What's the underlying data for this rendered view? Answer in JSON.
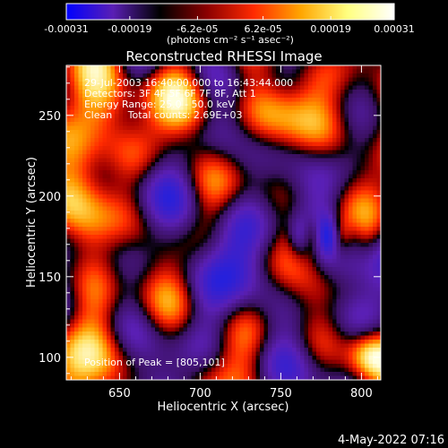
{
  "colorbar": {
    "tick_labels": [
      "-0.00031",
      "-0.00019",
      "-6.2e-05",
      "6.2e-05",
      "0.00019",
      "0.00031"
    ],
    "tick_values": [
      -0.00031,
      -0.00019,
      -6.2e-05,
      6.2e-05,
      0.00019,
      0.00031
    ],
    "range": [
      -0.00031,
      0.00031
    ],
    "unit_label": "(photons cm⁻² s⁻¹ asec⁻²)",
    "colormap": [
      "#0000ff",
      "#5a1fb4",
      "#000000",
      "#8b0000",
      "#ff2a00",
      "#ffa500",
      "#ffff80",
      "#ffffff"
    ]
  },
  "chart_data": {
    "type": "heatmap",
    "title": "Reconstructed RHESSI Image",
    "xlabel": "Heliocentric X (arcsec)",
    "ylabel": "Heliocentric Y (arcsec)",
    "xlim": [
      617,
      812
    ],
    "ylim": [
      86,
      281
    ],
    "x_ticks": [
      650,
      700,
      750,
      800
    ],
    "y_ticks": [
      100,
      150,
      200,
      250
    ],
    "annotations": [
      "29-Jul-2003 16:40:00.000 to 16:43:44.000",
      "Detectors: 3F 4F 5F 6F 7F 8F, Att 1",
      "Energy Range: 25.0 - 50.0 keV",
      "Clean     Total counts: 2.69E+03"
    ],
    "peak_label": "Position of Peak = [805,101]",
    "peak": [
      805,
      101
    ],
    "grid": false,
    "colors": {
      "negative": "#5a1fb4",
      "deep_negative": "#2020e0",
      "positive": "#ff3000",
      "peak": "#ffffa0"
    }
  },
  "footer": {
    "date": "4-May-2022 07:16"
  }
}
